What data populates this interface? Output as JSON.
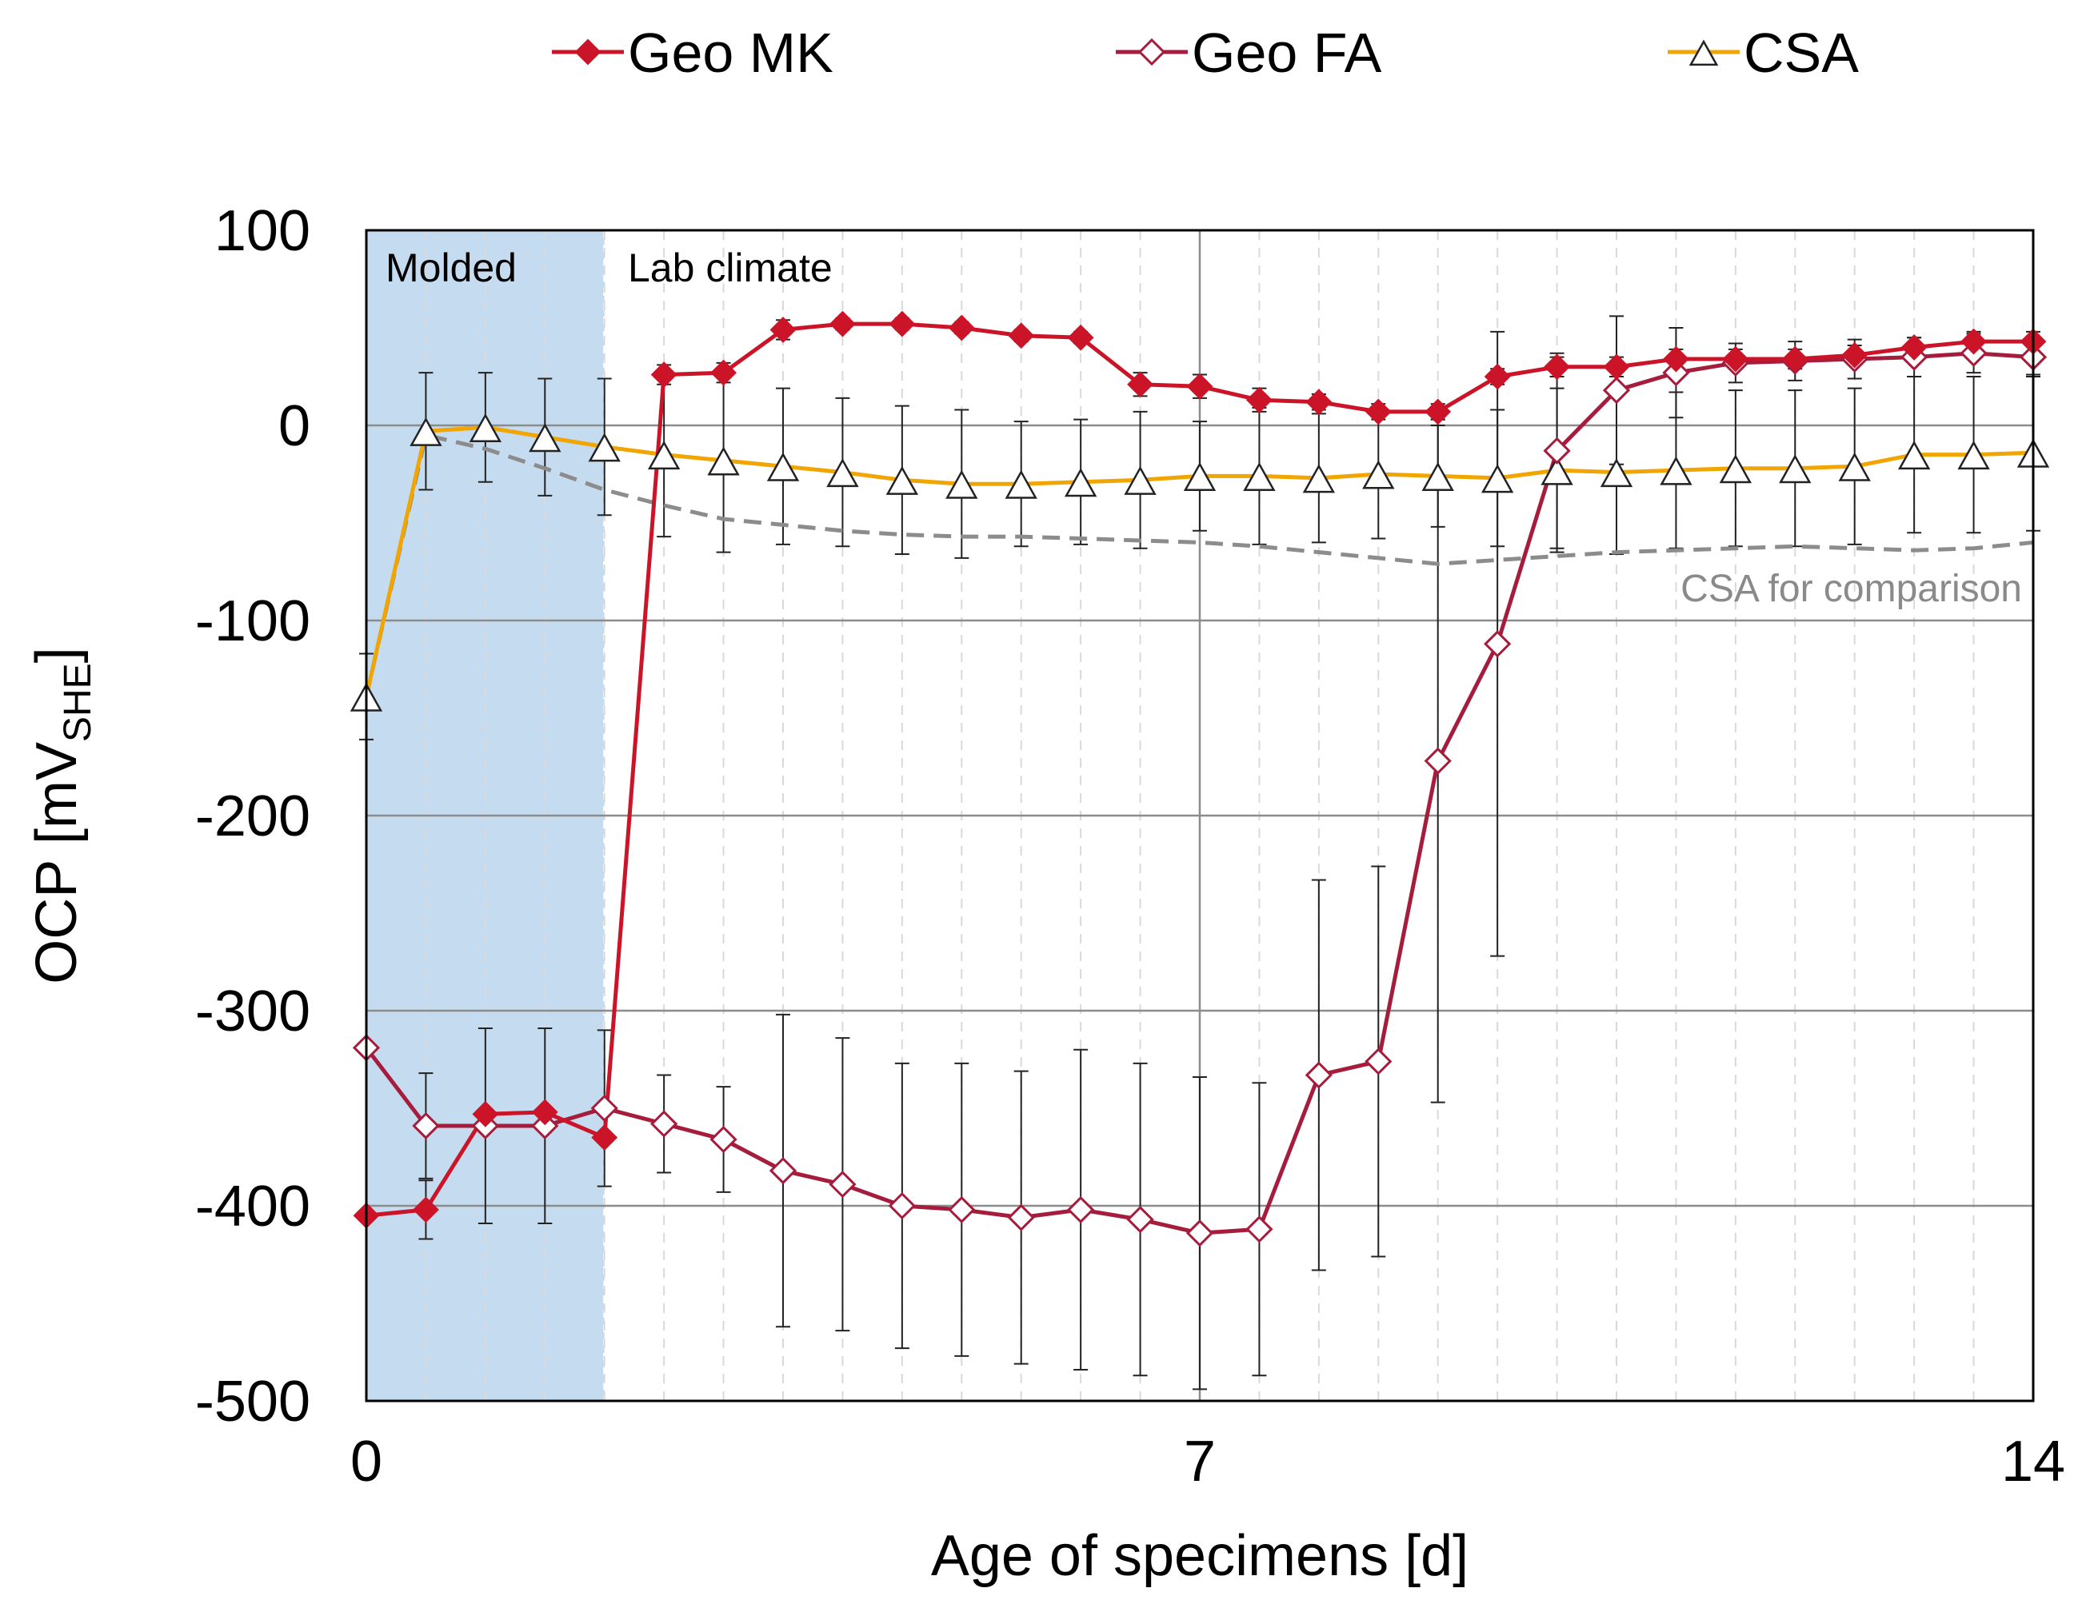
{
  "chart_data": {
    "type": "line",
    "title": "",
    "xlabel": "Age of specimens [d]",
    "ylabel_main": "OCP [mV",
    "ylabel_sub": "SHE",
    "ylabel_close": "]",
    "xlim": [
      0,
      14
    ],
    "ylim": [
      -500,
      100
    ],
    "x_ticks": [
      0,
      7,
      14
    ],
    "y_ticks": [
      100,
      0,
      -100,
      -200,
      -300,
      -400,
      -500
    ],
    "x_tick_labels": [
      "0",
      "7",
      "14"
    ],
    "y_tick_labels": [
      "100",
      "0",
      "-100",
      "-200",
      "-300",
      "-400",
      "-500"
    ],
    "minor_x_gridlines": [
      0.5,
      1,
      1.5,
      2,
      2.5,
      3,
      3.5,
      4,
      4.5,
      5,
      5.5,
      6,
      6.5,
      7.5,
      8,
      8.5,
      9,
      9.5,
      10,
      10.5,
      11,
      11.5,
      12,
      12.5,
      13,
      13.5
    ],
    "grid": true,
    "legend_position": "top",
    "shaded_regions": [
      {
        "label": "Molded",
        "x_start": 0,
        "x_end": 2,
        "color": "#c5dbef"
      }
    ],
    "annotations": [
      {
        "text": "Molded"
      },
      {
        "text": "Lab climate"
      },
      {
        "text": "CSA for comparison"
      }
    ],
    "colors": {
      "geo_mk": "#cc1428",
      "geo_fa": "#a51c3c",
      "csa": "#f0a500",
      "csa_comparison": "#8c8c8c"
    },
    "series": [
      {
        "name": "Geo MK",
        "marker": "filled-diamond",
        "color": "#cc1428",
        "x": [
          0,
          0.5,
          1,
          1.5,
          2,
          2.5,
          3,
          3.5,
          4,
          4.5,
          5,
          5.5,
          6,
          6.5,
          7,
          7.5,
          8,
          8.5,
          9,
          9.5,
          10,
          10.5,
          11,
          11.5,
          12,
          12.5,
          13,
          13.5,
          14
        ],
        "values": [
          -405,
          -402,
          -353,
          -352,
          -365,
          26,
          27,
          49,
          52,
          52,
          50,
          46,
          45,
          21,
          20,
          13,
          12,
          7,
          7,
          25,
          30,
          30,
          34,
          34,
          34,
          36,
          40,
          43,
          43
        ],
        "error": [
          null,
          15,
          null,
          null,
          null,
          5,
          5,
          5,
          3,
          3,
          3,
          3,
          3,
          6,
          6,
          6,
          4,
          4,
          4,
          4,
          5,
          5,
          5,
          5,
          5,
          5,
          5,
          5,
          5
        ]
      },
      {
        "name": "Geo FA",
        "marker": "open-diamond",
        "color": "#a51c3c",
        "x": [
          0,
          0.5,
          1,
          1.5,
          2,
          2.5,
          3,
          3.5,
          4,
          4.5,
          5,
          5.5,
          6,
          6.5,
          7,
          7.5,
          8,
          8.5,
          9,
          9.5,
          10,
          10.5,
          11,
          11.5,
          12,
          12.5,
          13,
          13.5,
          14
        ],
        "values": [
          -319,
          -359,
          -359,
          -359,
          -350,
          -358,
          -366,
          -382,
          -389,
          -400,
          -402,
          -406,
          -402,
          -407,
          -414,
          -412,
          -333,
          -326,
          -172,
          -112,
          -13,
          18,
          27,
          32,
          33,
          34,
          35,
          37,
          35
        ],
        "error": [
          null,
          27,
          50,
          50,
          40,
          25,
          27,
          80,
          75,
          73,
          75,
          75,
          82,
          80,
          80,
          75,
          100,
          100,
          175,
          160,
          50,
          38,
          23,
          10,
          10,
          10,
          10,
          10,
          10
        ]
      },
      {
        "name": "CSA",
        "marker": "open-triangle",
        "color": "#f0a500",
        "x": [
          0,
          0.5,
          1,
          1.5,
          2,
          2.5,
          3,
          3.5,
          4,
          4.5,
          5,
          5.5,
          6,
          6.5,
          7,
          7.5,
          8,
          8.5,
          9,
          9.5,
          10,
          10.5,
          11,
          11.5,
          12,
          12.5,
          13,
          13.5,
          14
        ],
        "values": [
          -139,
          -3,
          -1,
          -6,
          -11,
          -15,
          -18,
          -21,
          -24,
          -28,
          -30,
          -30,
          -29,
          -28,
          -26,
          -26,
          -27,
          -25,
          -26,
          -27,
          -23,
          -24,
          -23,
          -22,
          -22,
          -21,
          -15,
          -15,
          -14
        ],
        "error": [
          22,
          30,
          28,
          30,
          35,
          42,
          47,
          40,
          38,
          38,
          38,
          32,
          32,
          35,
          28,
          35,
          33,
          33,
          26,
          35,
          42,
          42,
          40,
          40,
          40,
          40,
          40,
          40,
          40
        ]
      },
      {
        "name": "CSA for comparison",
        "marker": "none",
        "line_style": "dashed",
        "color": "#8c8c8c",
        "x": [
          0,
          0.5,
          1,
          1.5,
          2,
          2.5,
          3,
          3.5,
          4,
          4.5,
          5,
          5.5,
          6,
          6.5,
          7,
          7.5,
          8,
          8.5,
          9,
          9.5,
          10,
          10.5,
          11,
          11.5,
          12,
          12.5,
          13,
          13.5,
          14
        ],
        "values": [
          -139,
          -5,
          -12,
          -22,
          -33,
          -41,
          -48,
          -51,
          -54,
          -56,
          -57,
          -57,
          -58,
          -59,
          -60,
          -62,
          -65,
          -68,
          -71,
          -69,
          -67,
          -65,
          -64,
          -63,
          -62,
          -63,
          -64,
          -63,
          -60
        ]
      }
    ]
  }
}
